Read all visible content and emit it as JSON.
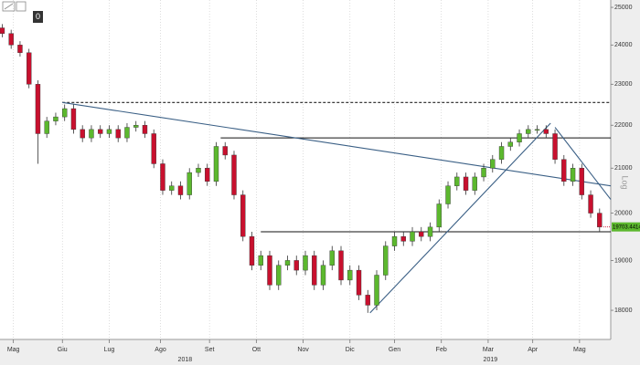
{
  "chart_data": {
    "type": "candlestick",
    "zoom_label": "0",
    "axis_title": "Log",
    "log_scale": true,
    "up_color": "#5cb82e",
    "down_color": "#c8102e",
    "x": [
      0,
      4,
      8,
      12,
      16,
      20,
      24,
      28,
      32,
      36,
      40,
      44,
      48,
      52,
      56,
      60,
      64,
      68,
      72,
      76,
      80,
      84,
      88,
      92,
      96,
      100,
      104,
      108,
      112,
      116,
      120,
      124,
      128,
      132,
      136,
      140,
      144,
      148,
      152,
      156,
      160,
      164,
      168,
      172,
      176,
      180,
      184,
      188,
      192,
      196,
      200,
      204,
      208,
      212,
      216,
      220,
      224,
      228,
      232,
      236,
      240,
      244,
      248,
      252,
      256,
      260,
      264,
      268
    ],
    "open": [
      24450,
      24300,
      24000,
      23800,
      23000,
      21800,
      22100,
      22200,
      22400,
      21900,
      21700,
      21900,
      21800,
      21900,
      21700,
      21950,
      22000,
      21800,
      21100,
      20500,
      20600,
      20400,
      20900,
      21000,
      20700,
      21500,
      21300,
      20400,
      19500,
      18900,
      19100,
      18500,
      18900,
      19000,
      18800,
      19100,
      18500,
      18900,
      19200,
      18600,
      18800,
      18300,
      18100,
      18700,
      19300,
      19500,
      19400,
      19600,
      19500,
      19700,
      20200,
      20600,
      20800,
      20500,
      20800,
      21000,
      21200,
      21500,
      21600,
      21800,
      21900,
      21900,
      21800,
      21200,
      20700,
      21000,
      20400,
      20000
    ],
    "high": [
      24550,
      24400,
      24100,
      23900,
      23100,
      22200,
      22300,
      22500,
      22500,
      22000,
      22000,
      22000,
      22000,
      22000,
      22050,
      22100,
      22100,
      21900,
      21200,
      20700,
      20700,
      21000,
      21100,
      21100,
      21600,
      21600,
      21400,
      20500,
      19600,
      19200,
      19200,
      19000,
      19100,
      19100,
      19200,
      19200,
      19000,
      19300,
      19300,
      18900,
      18900,
      18400,
      18800,
      19400,
      19600,
      19600,
      19700,
      19700,
      19800,
      20300,
      20700,
      20900,
      20900,
      20900,
      21100,
      21300,
      21600,
      21700,
      21900,
      22000,
      22000,
      22000,
      21900,
      21300,
      21100,
      21100,
      20500,
      20100
    ],
    "low": [
      24200,
      23900,
      23700,
      22900,
      21100,
      21700,
      22000,
      22100,
      21800,
      21600,
      21600,
      21700,
      21700,
      21600,
      21600,
      21850,
      21700,
      21000,
      20400,
      20400,
      20300,
      20300,
      20800,
      20600,
      20600,
      21200,
      20300,
      19400,
      18800,
      18800,
      18400,
      18400,
      18800,
      18700,
      18700,
      18400,
      18400,
      18800,
      18500,
      18500,
      18200,
      17950,
      18000,
      18600,
      19200,
      19300,
      19300,
      19400,
      19400,
      19600,
      20100,
      20500,
      20400,
      20400,
      20700,
      20900,
      21100,
      21400,
      21500,
      21700,
      21800,
      21700,
      21100,
      20600,
      20600,
      20300,
      19900,
      19600
    ],
    "close": [
      24300,
      24000,
      23800,
      23000,
      21800,
      22100,
      22200,
      22400,
      21900,
      21700,
      21900,
      21800,
      21900,
      21700,
      21950,
      22000,
      21800,
      21100,
      20500,
      20600,
      20400,
      20900,
      21000,
      20700,
      21500,
      21300,
      20400,
      19500,
      18900,
      19100,
      18500,
      18900,
      19000,
      18800,
      19100,
      18500,
      18900,
      19200,
      18600,
      18800,
      18300,
      18100,
      18700,
      19300,
      19500,
      19400,
      19600,
      19500,
      19700,
      20200,
      20600,
      20800,
      20500,
      20800,
      21000,
      21200,
      21500,
      21600,
      21800,
      21900,
      21900,
      21800,
      21200,
      20700,
      21000,
      20400,
      20000,
      19700
    ],
    "last_price": 19703.4414,
    "xlim": [
      -1,
      273
    ],
    "ylim": [
      17440,
      25200
    ],
    "yticks": [
      18000,
      19000,
      20000,
      21000,
      22000,
      23000,
      24000,
      25000
    ],
    "xticks": [
      {
        "value": 5,
        "label": "Mag"
      },
      {
        "value": 27,
        "label": "Giu"
      },
      {
        "value": 48,
        "label": "Lug"
      },
      {
        "value": 71,
        "label": "Ago"
      },
      {
        "value": 93,
        "label": "Set"
      },
      {
        "value": 114,
        "label": "Ott"
      },
      {
        "value": 135,
        "label": "Nov"
      },
      {
        "value": 156,
        "label": "Dic"
      },
      {
        "value": 176,
        "label": "Gen"
      },
      {
        "value": 197,
        "label": "Feb"
      },
      {
        "value": 218,
        "label": "Mar"
      },
      {
        "value": 238,
        "label": "Apr"
      },
      {
        "value": 259,
        "label": "Mag"
      }
    ],
    "year_labels": [
      {
        "value": 82,
        "label": "2018"
      },
      {
        "value": 219,
        "label": "2019"
      }
    ],
    "x_grid": true,
    "lines": [
      {
        "x": [
          27,
          273
        ],
        "y": [
          22550,
          22550
        ],
        "color": "#222222",
        "dashed": true
      },
      {
        "x": [
          98,
          273
        ],
        "y": [
          21700,
          21700
        ],
        "color": "#111111",
        "dashed": false
      },
      {
        "x": [
          116,
          273
        ],
        "y": [
          19600,
          19600
        ],
        "color": "#111111",
        "dashed": false
      },
      {
        "x": [
          27,
          273
        ],
        "y": [
          22550,
          20600
        ],
        "color": "#3a5f85",
        "dashed": false
      },
      {
        "x": [
          165,
          246
        ],
        "y": [
          17950,
          22050
        ],
        "color": "#3a5f85",
        "dashed": false
      },
      {
        "x": [
          248,
          273
        ],
        "y": [
          21950,
          20300
        ],
        "color": "#3a5f85",
        "dashed": false
      }
    ]
  }
}
